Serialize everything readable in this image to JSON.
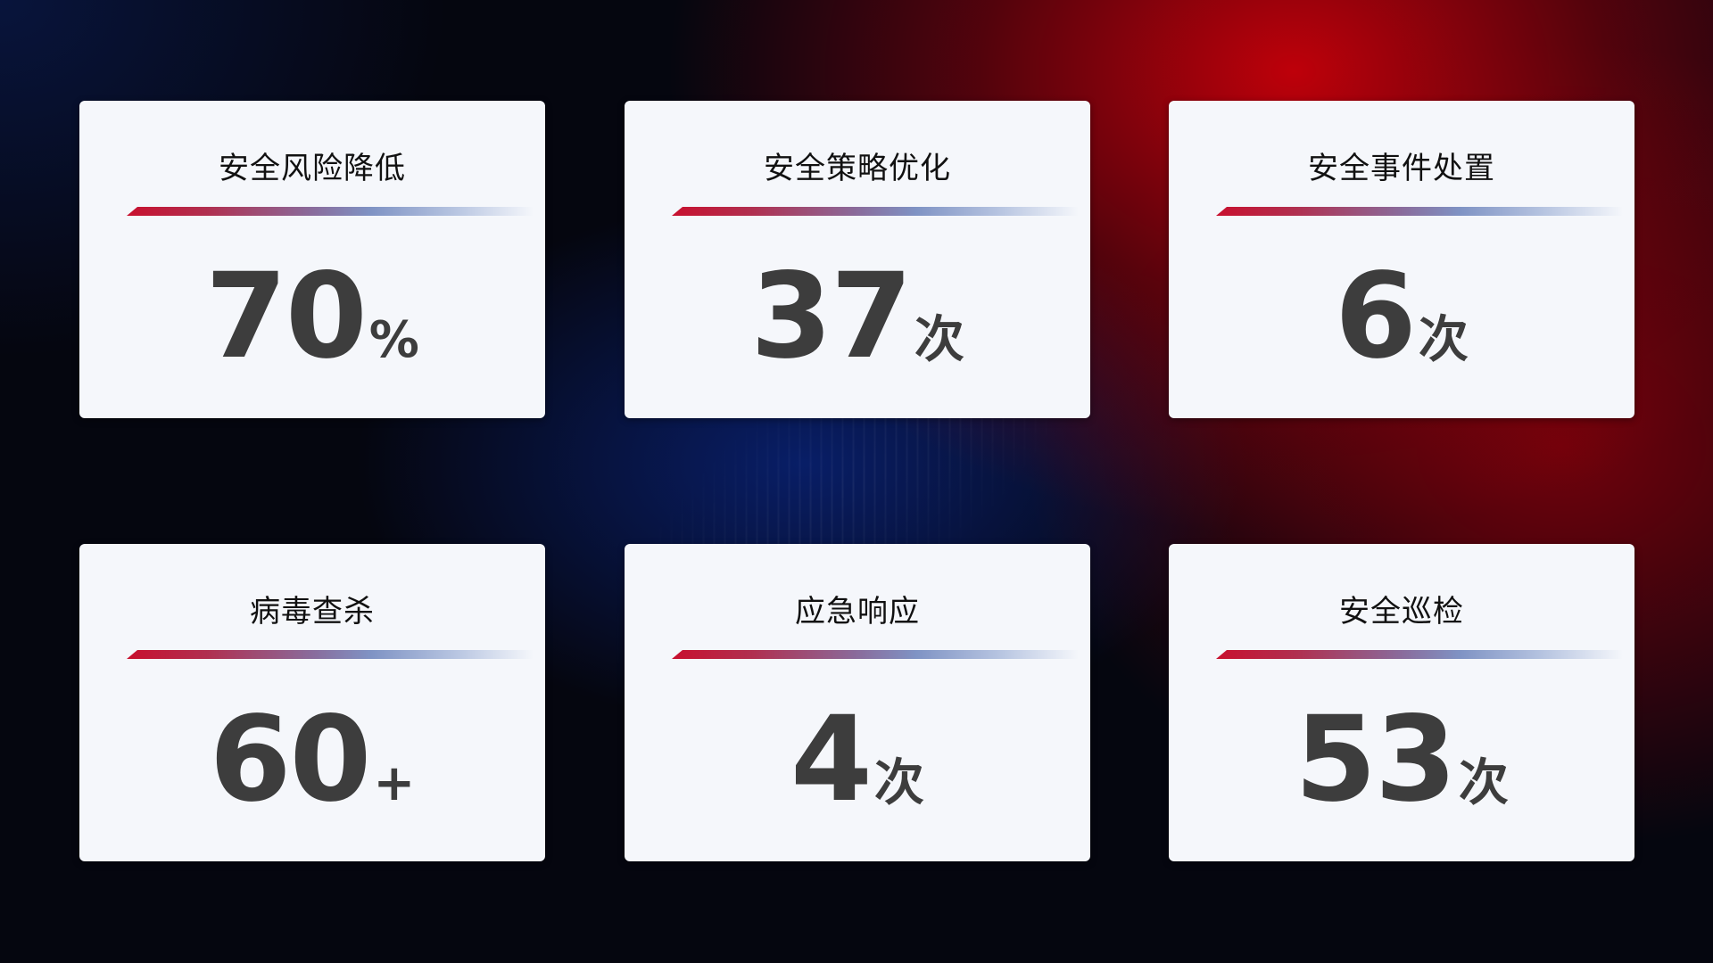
{
  "cards": [
    {
      "title": "安全风险降低",
      "value": "70",
      "unit": "%"
    },
    {
      "title": "安全策略优化",
      "value": "37",
      "unit": "次"
    },
    {
      "title": "安全事件处置",
      "value": "6",
      "unit": "次"
    },
    {
      "title": "病毒查杀",
      "value": "60",
      "unit": "+"
    },
    {
      "title": "应急响应",
      "value": "4",
      "unit": "次"
    },
    {
      "title": "安全巡检",
      "value": "53",
      "unit": "次"
    }
  ],
  "colors": {
    "accent_red": "#c8102e",
    "accent_blue": "#7f93c4",
    "card_bg": "#f5f7fb"
  }
}
